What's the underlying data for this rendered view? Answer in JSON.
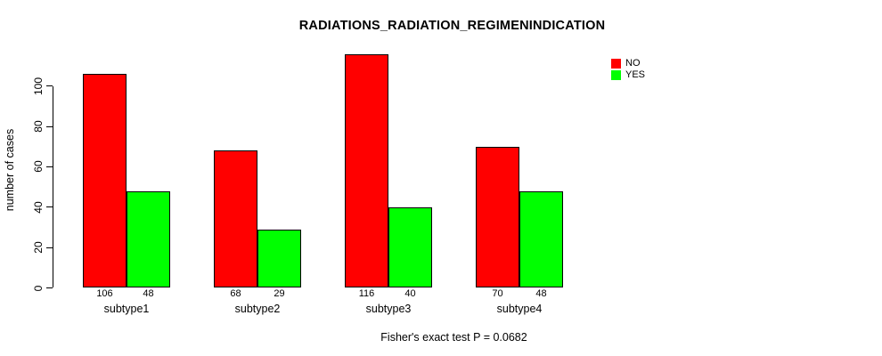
{
  "chart_data": {
    "type": "bar",
    "title": "RADIATIONS_RADIATION_REGIMENINDICATION",
    "ylabel": "number of cases",
    "xlabel": "",
    "categories": [
      "subtype1",
      "subtype2",
      "subtype3",
      "subtype4"
    ],
    "series": [
      {
        "name": "NO",
        "color": "#FF0000",
        "values": [
          106,
          68,
          116,
          70
        ]
      },
      {
        "name": "YES",
        "color": "#00FF00",
        "values": [
          48,
          29,
          40,
          48
        ]
      }
    ],
    "yticks": [
      0,
      20,
      40,
      60,
      80,
      100
    ],
    "ylim": [
      0,
      116
    ],
    "grid": false,
    "legend_position": "top-right",
    "bar_value_labels_shown": true,
    "annotation": "Fisher's exact test P = 0.0682"
  },
  "colors": {
    "no": "#FF0000",
    "yes": "#00FF00",
    "axis": "#000000",
    "background": "#FFFFFF"
  }
}
